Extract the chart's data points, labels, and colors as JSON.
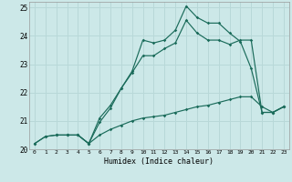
{
  "xlabel": "Humidex (Indice chaleur)",
  "xlim": [
    -0.5,
    23.5
  ],
  "ylim": [
    20,
    25.2
  ],
  "xticks": [
    0,
    1,
    2,
    3,
    4,
    5,
    6,
    7,
    8,
    9,
    10,
    11,
    12,
    13,
    14,
    15,
    16,
    17,
    18,
    19,
    20,
    21,
    22,
    23
  ],
  "yticks": [
    20,
    21,
    22,
    23,
    24,
    25
  ],
  "bg_color": "#cce8e8",
  "grid_color": "#b8d8d8",
  "line_color": "#1a6b5a",
  "line1_x": [
    0,
    1,
    2,
    3,
    4,
    5,
    6,
    7,
    8,
    9,
    10,
    11,
    12,
    13,
    14,
    15,
    16,
    17,
    18,
    19,
    20,
    21,
    22,
    23
  ],
  "line1_y": [
    20.2,
    20.45,
    20.5,
    20.5,
    20.5,
    20.2,
    20.5,
    20.7,
    20.85,
    21.0,
    21.1,
    21.15,
    21.2,
    21.3,
    21.4,
    21.5,
    21.55,
    21.65,
    21.75,
    21.85,
    21.85,
    21.5,
    21.3,
    21.5
  ],
  "line2_x": [
    0,
    1,
    2,
    3,
    4,
    5,
    6,
    7,
    8,
    9,
    10,
    11,
    12,
    13,
    14,
    15,
    16,
    17,
    18,
    19,
    20,
    21,
    22,
    23
  ],
  "line2_y": [
    20.2,
    20.45,
    20.5,
    20.5,
    20.5,
    20.2,
    21.1,
    21.55,
    22.15,
    22.75,
    23.85,
    23.75,
    23.85,
    24.2,
    25.05,
    24.65,
    24.45,
    24.45,
    24.1,
    23.8,
    22.85,
    21.3,
    21.3,
    21.5
  ],
  "line3_x": [
    2,
    3,
    4,
    5,
    6,
    7,
    8,
    9,
    10,
    11,
    12,
    13,
    14,
    15,
    16,
    17,
    18,
    19,
    20,
    21,
    22,
    23
  ],
  "line3_y": [
    20.5,
    20.5,
    20.5,
    20.2,
    20.95,
    21.45,
    22.15,
    22.7,
    23.3,
    23.3,
    23.55,
    23.75,
    24.55,
    24.1,
    23.85,
    23.85,
    23.7,
    23.85,
    23.85,
    21.3,
    21.3,
    21.5
  ]
}
